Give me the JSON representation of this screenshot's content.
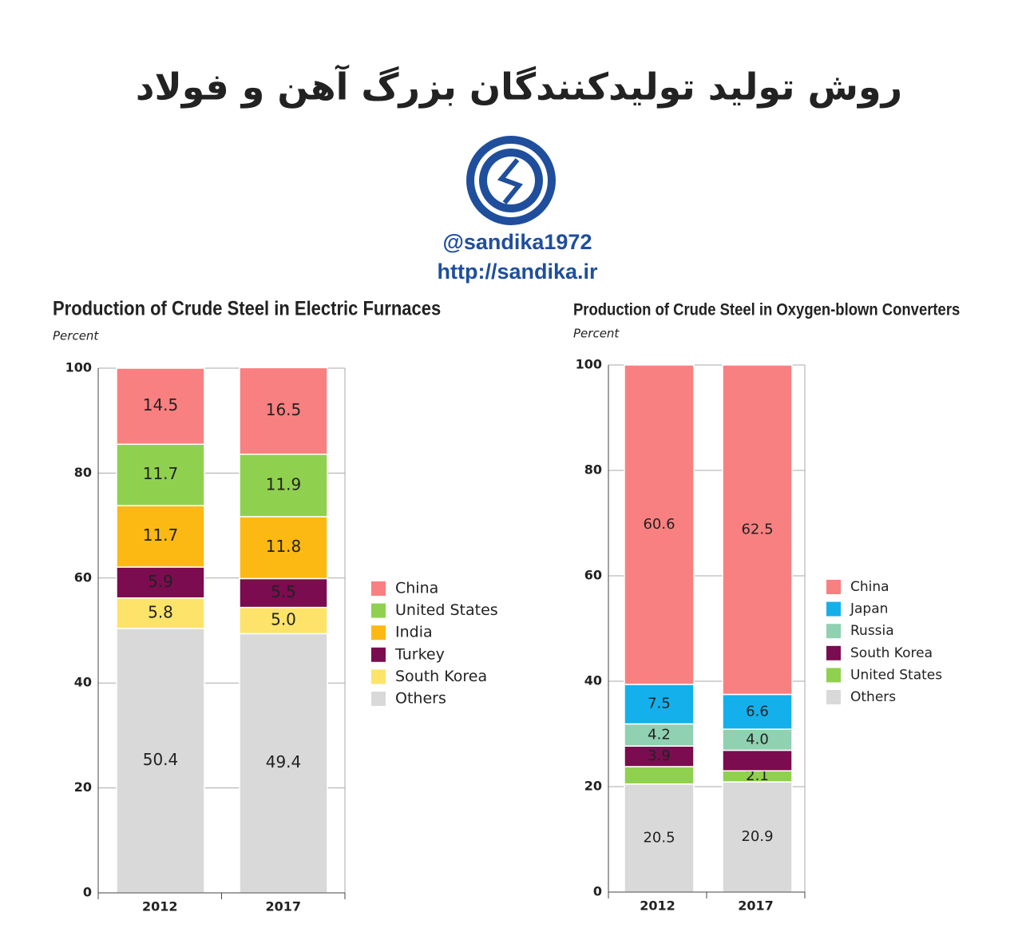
{
  "header": {
    "title": "روش تولید تولیدکنندگان بزرگ آهن و فولاد",
    "handle": "@sandika1972",
    "url": "http://sandika.ir"
  },
  "chart_data": [
    {
      "type": "bar",
      "stacked": true,
      "title": "Production of Crude Steel in Electric Furnaces",
      "ylabel": "Percent",
      "categories": [
        "2012",
        "2017"
      ],
      "series": [
        {
          "name": "China",
          "color": "#f98080",
          "values": [
            14.5,
            16.5
          ],
          "value_labels": [
            "14.5",
            "16.5"
          ]
        },
        {
          "name": "United States",
          "color": "#8fd14f",
          "values": [
            11.7,
            11.9
          ],
          "value_labels": [
            "11.7",
            "11.9"
          ]
        },
        {
          "name": "India",
          "color": "#fdb913",
          "values": [
            11.7,
            11.8
          ],
          "value_labels": [
            "11.7",
            "11.8"
          ]
        },
        {
          "name": "Turkey",
          "color": "#7b0c4f",
          "values": [
            5.9,
            5.5
          ],
          "value_labels": [
            "5.9",
            "5.5"
          ]
        },
        {
          "name": "South Korea",
          "color": "#fde36a",
          "values": [
            5.8,
            5.0
          ],
          "value_labels": [
            "5.8",
            "5.0"
          ]
        },
        {
          "name": "Others",
          "color": "#d9d9d9",
          "values": [
            50.4,
            49.4
          ],
          "value_labels": [
            "50.4",
            "49.4"
          ]
        }
      ],
      "ylim": [
        0,
        100
      ],
      "yticks": [
        0,
        20,
        40,
        60,
        80,
        100
      ],
      "grid": true,
      "legend": "right"
    },
    {
      "type": "bar",
      "stacked": true,
      "title": "Production of Crude Steel in Oxygen-blown Converters",
      "ylabel": "Percent",
      "categories": [
        "2012",
        "2017"
      ],
      "series": [
        {
          "name": "China",
          "color": "#f98080",
          "values": [
            60.6,
            62.5
          ],
          "value_labels": [
            "60.6",
            "62.5"
          ]
        },
        {
          "name": "Japan",
          "color": "#14b0eb",
          "values": [
            7.5,
            6.6
          ],
          "value_labels": [
            "7.5",
            "6.6"
          ]
        },
        {
          "name": "Russia",
          "color": "#8fd1b0",
          "values": [
            4.2,
            4.0
          ],
          "value_labels": [
            "4.2",
            "4.0"
          ]
        },
        {
          "name": "South Korea",
          "color": "#7b0c4f",
          "values": [
            3.9,
            3.9
          ],
          "value_labels": [
            "3.9",
            null
          ]
        },
        {
          "name": "United States",
          "color": "#8fd14f",
          "values": [
            3.3,
            2.1
          ],
          "value_labels": [
            null,
            "2.1"
          ]
        },
        {
          "name": "Others",
          "color": "#d9d9d9",
          "values": [
            20.5,
            20.9
          ],
          "value_labels": [
            "20.5",
            "20.9"
          ]
        }
      ],
      "ylim": [
        0,
        100
      ],
      "yticks": [
        0,
        20,
        40,
        60,
        80,
        100
      ],
      "grid": true,
      "legend": "right"
    }
  ]
}
